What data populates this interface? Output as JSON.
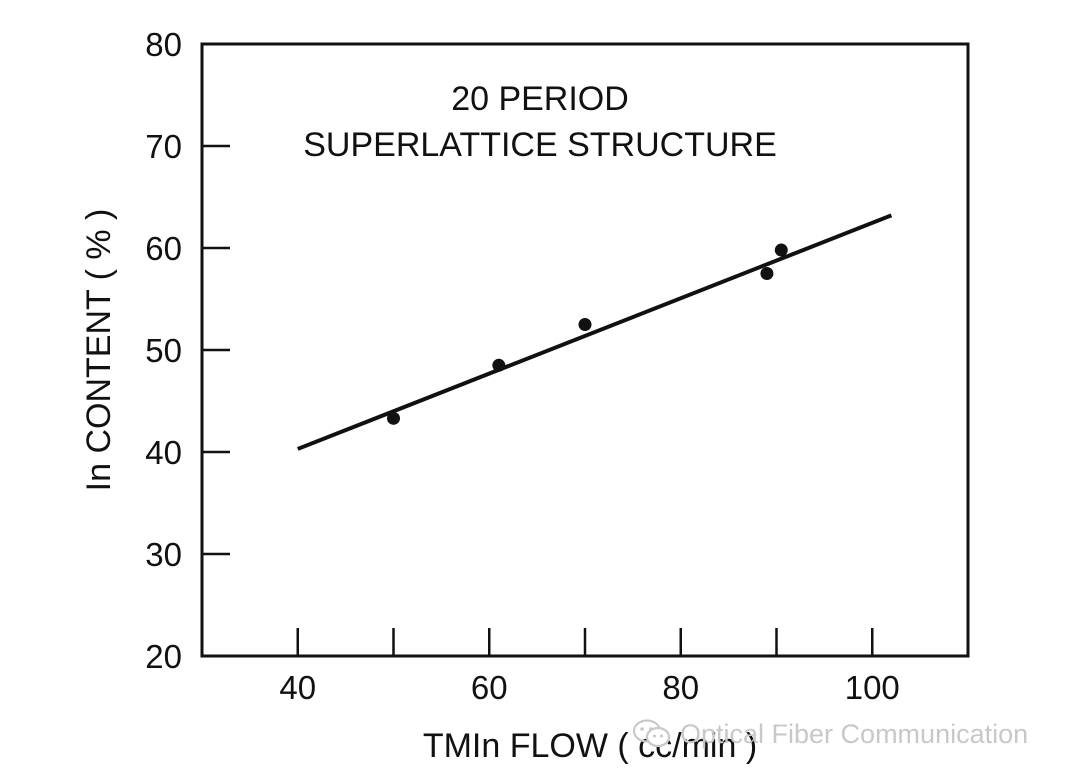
{
  "chart_data": {
    "type": "scatter",
    "title": "20  PERIOD",
    "subtitle": "SUPERLATTICE STRUCTURE",
    "xlabel": "TMIn FLOW ( cc/min )",
    "ylabel": "In CONTENT ( % )",
    "xlim": [
      30,
      110
    ],
    "ylim": [
      20,
      80
    ],
    "x_ticks": [
      40,
      50,
      60,
      70,
      80,
      90,
      100
    ],
    "x_tick_labels": [
      "40",
      "",
      "60",
      "",
      "80",
      "",
      "100"
    ],
    "y_ticks": [
      20,
      30,
      40,
      50,
      60,
      70,
      80
    ],
    "y_tick_labels": [
      "20",
      "30",
      "40",
      "50",
      "60",
      "70",
      "80"
    ],
    "grid": false,
    "legend": "none",
    "series": [
      {
        "x": [
          50,
          61,
          70,
          89,
          90.5
        ],
        "y": [
          43.3,
          48.5,
          52.5,
          57.5,
          59.8
        ],
        "marker": "filled-circle",
        "color": "#111111"
      }
    ],
    "fit_line": {
      "x": [
        40,
        102
      ],
      "y": [
        40.3,
        63.2
      ],
      "color": "#111111"
    }
  },
  "watermark": {
    "icon": "wechat-icon",
    "text": "Optical Fiber Communication"
  }
}
